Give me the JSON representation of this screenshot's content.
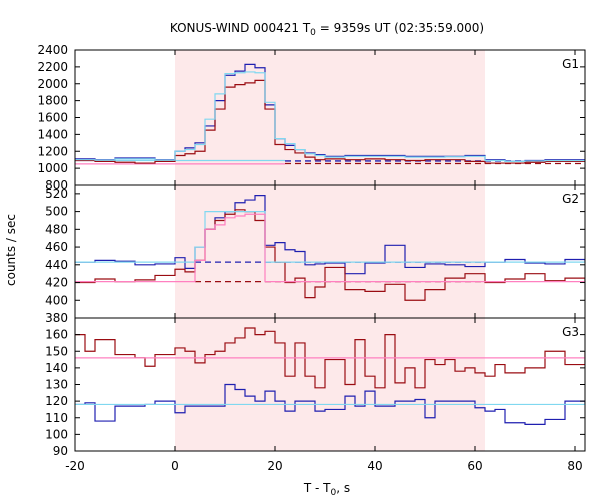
{
  "chart_data": {
    "type": "line",
    "title": {
      "prefix": "KONUS-WIND 000421 T",
      "sub": "0",
      "suffix": " = 9359s UT (02:35:59.000)"
    },
    "xlabel": {
      "prefix": "T - T",
      "sub": "0",
      "suffix": ", s"
    },
    "ylabel": "counts / sec",
    "xlim": [
      -20,
      82
    ],
    "xticks": [
      -20,
      0,
      20,
      40,
      60,
      80
    ],
    "shaded_interval": [
      0,
      62
    ],
    "colors": {
      "shade": "#fde9ea",
      "series_dark_blue": "#1f1fb0",
      "series_dark_red": "#9a0c12",
      "fit_light_blue": "#80d8f0",
      "fit_pink": "#ff80c0"
    },
    "panels": [
      {
        "name": "G1",
        "ylim": [
          800,
          2400
        ],
        "yticks": [
          800,
          1000,
          1200,
          1400,
          1600,
          1800,
          2000,
          2200,
          2400
        ],
        "series": [
          {
            "color": "#1f1fb0",
            "x": [
              -20,
              -16,
              -12,
              -8,
              -4,
              0,
              2,
              4,
              6,
              8,
              10,
              12,
              14,
              16,
              18,
              20,
              22,
              24,
              26,
              28,
              30,
              34,
              38,
              42,
              46,
              50,
              54,
              58,
              62,
              66,
              70,
              74,
              78,
              82
            ],
            "y": [
              1110,
              1100,
              1120,
              1120,
              1100,
              1200,
              1240,
              1300,
              1500,
              1800,
              2100,
              2150,
              2230,
              2190,
              1750,
              1350,
              1270,
              1220,
              1180,
              1160,
              1140,
              1150,
              1150,
              1150,
              1140,
              1140,
              1140,
              1150,
              1100,
              1080,
              1090,
              1100,
              1100,
              1100
            ]
          },
          {
            "color": "#9a0c12",
            "x": [
              -20,
              -16,
              -12,
              -8,
              -4,
              0,
              2,
              4,
              6,
              8,
              10,
              12,
              14,
              16,
              18,
              20,
              22,
              24,
              26,
              28,
              30,
              34,
              38,
              42,
              46,
              50,
              54,
              58,
              62,
              66,
              70,
              74,
              78,
              82
            ],
            "y": [
              1090,
              1080,
              1070,
              1060,
              1080,
              1150,
              1170,
              1200,
              1450,
              1700,
              1960,
              1990,
              2010,
              2040,
              1700,
              1280,
              1220,
              1180,
              1130,
              1100,
              1110,
              1100,
              1110,
              1100,
              1090,
              1100,
              1100,
              1080,
              1060,
              1060,
              1070,
              1080,
              1080,
              1080
            ]
          },
          {
            "color": "#80d8f0",
            "x": [
              -20,
              -16,
              -12,
              -8,
              -4,
              0,
              2,
              4,
              6,
              8,
              10,
              12,
              14,
              16,
              18,
              20,
              22,
              24,
              26,
              28,
              30,
              34,
              38,
              42,
              46,
              50,
              54,
              58,
              62,
              66,
              70,
              74,
              78,
              82
            ],
            "y": [
              1100,
              1095,
              1110,
              1110,
              1095,
              1200,
              1220,
              1280,
              1580,
              1880,
              2120,
              2130,
              2140,
              2130,
              1780,
              1350,
              1290,
              1220,
              1170,
              1150,
              1130,
              1140,
              1140,
              1140,
              1130,
              1130,
              1135,
              1140,
              1090,
              1080,
              1085,
              1090,
              1090,
              1090
            ]
          }
        ],
        "baselines": [
          {
            "color": "#1f1fb0",
            "y": 1085,
            "from": 22,
            "style": "dashed"
          },
          {
            "color": "#9a0c12",
            "y": 1055,
            "from": 22,
            "style": "dashed"
          },
          {
            "color": "#ff80c0",
            "y": 1050,
            "from": -20,
            "to": 22,
            "style": "solid"
          },
          {
            "color": "#80d8f0",
            "y": 1090,
            "from": -20,
            "to": 22,
            "style": "solid"
          }
        ]
      },
      {
        "name": "G2",
        "ylim": [
          380,
          530
        ],
        "yticks": [
          380,
          400,
          420,
          440,
          460,
          480,
          500,
          520
        ],
        "series": [
          {
            "color": "#1f1fb0",
            "x": [
              -20,
              -16,
              -12,
              -8,
              -4,
              0,
              2,
              4,
              6,
              8,
              10,
              12,
              14,
              16,
              18,
              20,
              22,
              24,
              26,
              28,
              30,
              34,
              38,
              42,
              46,
              50,
              54,
              58,
              62,
              66,
              70,
              74,
              78,
              82
            ],
            "y": [
              443,
              445,
              444,
              440,
              441,
              448,
              436,
              460,
              480,
              493,
              500,
              510,
              513,
              518,
              462,
              465,
              457,
              455,
              440,
              441,
              442,
              430,
              442,
              462,
              437,
              441,
              440,
              438,
              443,
              446,
              442,
              441,
              446,
              443
            ]
          },
          {
            "color": "#9a0c12",
            "x": [
              -20,
              -16,
              -12,
              -8,
              -4,
              0,
              2,
              4,
              6,
              8,
              10,
              12,
              14,
              16,
              18,
              20,
              22,
              24,
              26,
              28,
              30,
              34,
              38,
              42,
              46,
              50,
              54,
              58,
              62,
              66,
              70,
              74,
              78,
              82
            ],
            "y": [
              420,
              424,
              421,
              423,
              428,
              435,
              432,
              445,
              480,
              490,
              497,
              502,
              500,
              490,
              460,
              443,
              420,
              425,
              403,
              415,
              437,
              412,
              410,
              418,
              400,
              412,
              425,
              430,
              420,
              424,
              430,
              422,
              425,
              420
            ]
          },
          {
            "color": "#80d8f0",
            "x": [
              -20,
              -16,
              -12,
              -8,
              -4,
              0,
              2,
              4,
              6,
              8,
              10,
              12,
              14,
              16,
              18,
              20,
              22,
              24,
              26,
              28,
              30,
              34,
              38,
              42,
              46,
              50,
              54,
              58,
              62,
              66,
              70,
              74,
              78,
              82
            ],
            "y": [
              443,
              443,
              443,
              443,
              443,
              443,
              443,
              460,
              500,
              500,
              500,
              500,
              500,
              500,
              443,
              443,
              443,
              443,
              443,
              443,
              443,
              443,
              443,
              443,
              443,
              443,
              443,
              443,
              443,
              443,
              443,
              443,
              443,
              443
            ]
          },
          {
            "color": "#ff80c0",
            "x": [
              -20,
              -16,
              -12,
              -8,
              -4,
              0,
              2,
              4,
              6,
              8,
              10,
              12,
              14,
              16,
              18,
              20,
              22,
              24,
              26,
              28,
              30,
              34,
              38,
              42,
              46,
              50,
              54,
              58,
              62,
              66,
              70,
              74,
              78,
              82
            ],
            "y": [
              421,
              421,
              421,
              421,
              421,
              421,
              421,
              445,
              480,
              485,
              493,
              495,
              497,
              497,
              421,
              421,
              421,
              421,
              421,
              421,
              421,
              421,
              421,
              421,
              421,
              421,
              421,
              421,
              421,
              421,
              421,
              421,
              421,
              421
            ]
          }
        ],
        "baselines": [
          {
            "color": "#1f1fb0",
            "y": 443,
            "from": 4,
            "to": 62,
            "style": "dashed"
          },
          {
            "color": "#9a0c12",
            "y": 421,
            "from": 4,
            "to": 62,
            "style": "dashed"
          }
        ]
      },
      {
        "name": "G3",
        "ylim": [
          90,
          170
        ],
        "yticks": [
          90,
          100,
          110,
          120,
          130,
          140,
          150,
          160
        ],
        "series": [
          {
            "color": "#9a0c12",
            "x": [
              -20,
              -18,
              -16,
              -12,
              -8,
              -6,
              -4,
              0,
              2,
              4,
              6,
              8,
              10,
              12,
              14,
              16,
              18,
              20,
              22,
              24,
              26,
              28,
              30,
              34,
              36,
              38,
              40,
              42,
              44,
              46,
              48,
              50,
              52,
              54,
              56,
              58,
              60,
              62,
              64,
              66,
              70,
              74,
              78,
              82
            ],
            "y": [
              160,
              150,
              157,
              148,
              146,
              141,
              148,
              152,
              150,
              143,
              148,
              150,
              155,
              158,
              164,
              160,
              162,
              155,
              135,
              155,
              135,
              128,
              145,
              130,
              157,
              135,
              128,
              160,
              131,
              140,
              128,
              145,
              142,
              145,
              138,
              140,
              137,
              135,
              142,
              137,
              140,
              150,
              142,
              150
            ]
          },
          {
            "color": "#1f1fb0",
            "x": [
              -20,
              -18,
              -16,
              -12,
              -8,
              -6,
              -4,
              0,
              2,
              4,
              6,
              8,
              10,
              12,
              14,
              16,
              18,
              20,
              22,
              24,
              26,
              28,
              30,
              34,
              36,
              38,
              40,
              42,
              44,
              46,
              48,
              50,
              52,
              54,
              56,
              58,
              60,
              62,
              64,
              66,
              70,
              74,
              78,
              82
            ],
            "y": [
              118,
              119,
              108,
              117,
              117,
              118,
              120,
              113,
              117,
              117,
              117,
              117,
              130,
              127,
              123,
              120,
              126,
              120,
              114,
              120,
              120,
              114,
              115,
              123,
              117,
              126,
              117,
              117,
              120,
              120,
              121,
              110,
              120,
              120,
              120,
              120,
              116,
              114,
              115,
              107,
              106,
              109,
              120,
              118
            ]
          },
          {
            "color": "#ff80c0",
            "x": [
              -20,
              82
            ],
            "y": [
              146,
              146
            ]
          },
          {
            "color": "#80d8f0",
            "x": [
              -20,
              82
            ],
            "y": [
              118,
              118
            ]
          }
        ],
        "baselines": []
      }
    ]
  }
}
